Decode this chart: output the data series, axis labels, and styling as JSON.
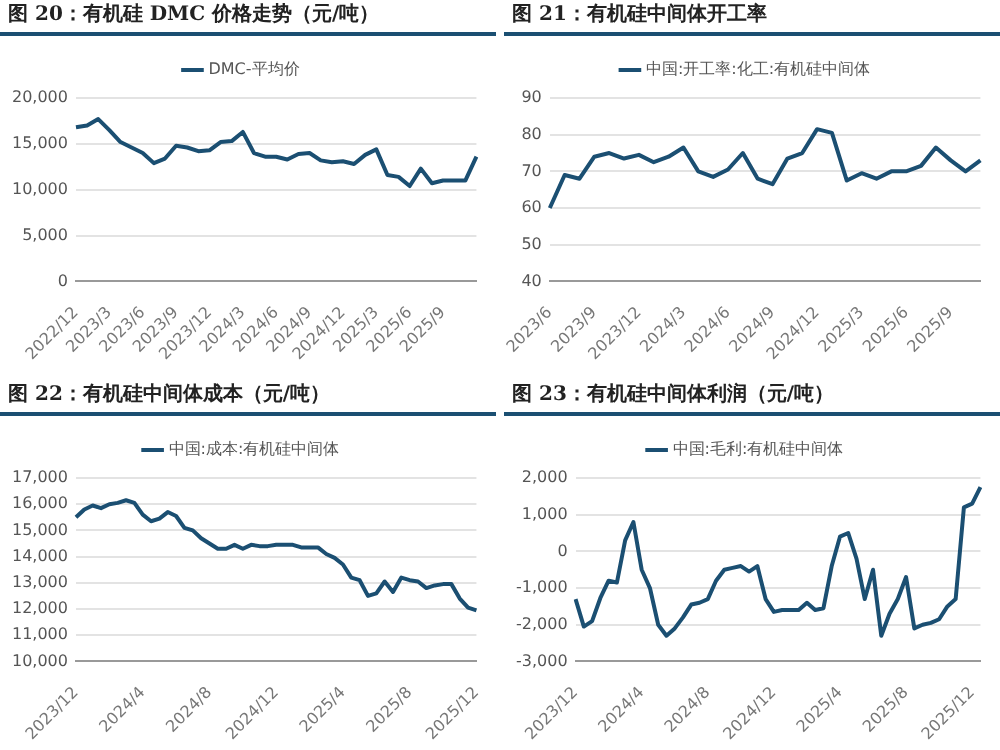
{
  "chart_data": [
    {
      "type": "line",
      "title": "图 20：有机硅 DMC 价格走势（元/吨）",
      "legend": "top",
      "grid": "y",
      "marker": "none",
      "line_style": "solid",
      "categories": [
        "2022/12",
        null,
        null,
        "2023/3",
        null,
        null,
        "2023/6",
        null,
        null,
        "2023/9",
        null,
        null,
        "2023/12",
        null,
        null,
        "2024/3",
        null,
        null,
        "2024/6",
        null,
        null,
        "2024/9",
        null,
        null,
        "2024/12",
        null,
        null,
        "2025/3",
        null,
        null,
        "2025/6",
        null,
        null,
        "2025/9",
        null,
        null,
        null
      ],
      "series": [
        {
          "name": "DMC-平均价",
          "color": "#1b4f72",
          "values": [
            16800,
            17000,
            17700,
            16500,
            15200,
            14600,
            14000,
            12900,
            13400,
            14800,
            14600,
            14200,
            14300,
            15200,
            15300,
            16300,
            14000,
            13600,
            13600,
            13300,
            13900,
            14000,
            13200,
            13000,
            13100,
            12800,
            13800,
            14400,
            11600,
            11400,
            10400,
            12300,
            10700,
            11000,
            11000,
            11000,
            13600
          ]
        }
      ],
      "ylim": [
        0,
        20000
      ],
      "yticks": [
        0,
        {
          "value": 5000,
          "label": "5,000"
        },
        {
          "value": 10000,
          "label": "10,000"
        },
        {
          "value": 15000,
          "label": "15,000"
        },
        {
          "value": 20000,
          "label": "20,000"
        }
      ]
    },
    {
      "type": "line",
      "title": "图 21：有机硅中间体开工率",
      "legend": "top",
      "grid": "y",
      "marker": "none",
      "line_style": "solid",
      "categories": [
        "2023/6",
        null,
        null,
        "2023/9",
        null,
        null,
        "2023/12",
        null,
        null,
        "2024/3",
        null,
        null,
        "2024/6",
        null,
        null,
        "2024/9",
        null,
        null,
        "2024/12",
        null,
        null,
        "2025/3",
        null,
        null,
        "2025/6",
        null,
        null,
        "2025/9",
        null,
        null
      ],
      "series": [
        {
          "name": "中国:开工率:化工:有机硅中间体",
          "color": "#1b4f72",
          "values": [
            60,
            69,
            68,
            74,
            75,
            73.5,
            74.5,
            72.5,
            74,
            76.5,
            70,
            68.5,
            70.5,
            75,
            68,
            66.5,
            73.5,
            75,
            81.5,
            80.5,
            67.5,
            69.5,
            68,
            70,
            70,
            71.5,
            76.5,
            73,
            70,
            73
          ]
        }
      ],
      "ylim": [
        40,
        90
      ],
      "yticks": [
        40,
        50,
        60,
        70,
        80,
        90
      ]
    },
    {
      "type": "line",
      "title": "图 22：有机硅中间体成本（元/吨）",
      "legend": "top",
      "grid": "y",
      "marker": "none",
      "line_style": "solid",
      "categories": [
        "2023/12",
        null,
        null,
        null,
        null,
        null,
        null,
        null,
        "2024/4",
        null,
        null,
        null,
        null,
        null,
        null,
        null,
        "2024/8",
        null,
        null,
        null,
        null,
        null,
        null,
        null,
        "2024/12",
        null,
        null,
        null,
        null,
        null,
        null,
        null,
        "2025/4",
        null,
        null,
        null,
        null,
        null,
        null,
        null,
        "2025/8",
        null,
        null,
        null,
        null,
        null,
        null,
        null,
        "2025/12"
      ],
      "series": [
        {
          "name": "中国:成本:有机硅中间体",
          "color": "#1b4f72",
          "values": [
            15500,
            15800,
            15950,
            15850,
            16000,
            16050,
            16150,
            16050,
            15600,
            15350,
            15450,
            15700,
            15550,
            15100,
            15000,
            14700,
            14500,
            14300,
            14300,
            14450,
            14300,
            14450,
            14400,
            14400,
            14450,
            14450,
            14450,
            14350,
            14350,
            14350,
            14100,
            13950,
            13700,
            13200,
            13100,
            12500,
            12600,
            13050,
            12650,
            13200,
            13100,
            13050,
            12800,
            12900,
            12950,
            12950,
            12400,
            12050,
            11950
          ]
        }
      ],
      "ylim": [
        10000,
        17000
      ],
      "yticks": [
        {
          "value": 10000,
          "label": "10,000"
        },
        {
          "value": 11000,
          "label": "11,000"
        },
        {
          "value": 12000,
          "label": "12,000"
        },
        {
          "value": 13000,
          "label": "13,000"
        },
        {
          "value": 14000,
          "label": "14,000"
        },
        {
          "value": 15000,
          "label": "15,000"
        },
        {
          "value": 16000,
          "label": "16,000"
        },
        {
          "value": 17000,
          "label": "17,000"
        }
      ]
    },
    {
      "type": "line",
      "title": "图 23：有机硅中间体利润（元/吨）",
      "legend": "top",
      "grid": "y",
      "marker": "none",
      "line_style": "solid",
      "categories": [
        "2023/12",
        null,
        null,
        null,
        null,
        null,
        null,
        null,
        "2024/4",
        null,
        null,
        null,
        null,
        null,
        null,
        null,
        "2024/8",
        null,
        null,
        null,
        null,
        null,
        null,
        null,
        "2024/12",
        null,
        null,
        null,
        null,
        null,
        null,
        null,
        "2025/4",
        null,
        null,
        null,
        null,
        null,
        null,
        null,
        "2025/8",
        null,
        null,
        null,
        null,
        null,
        null,
        null,
        "2025/12",
        null
      ],
      "series": [
        {
          "name": "中国:毛利:有机硅中间体",
          "color": "#1b4f72",
          "values": [
            -1300,
            -2050,
            -1900,
            -1270,
            -800,
            -850,
            300,
            800,
            -500,
            -1000,
            -2000,
            -2300,
            -2100,
            -1800,
            -1450,
            -1400,
            -1300,
            -800,
            -500,
            -450,
            -400,
            -550,
            -400,
            -1300,
            -1650,
            -1600,
            -1600,
            -1600,
            -1400,
            -1600,
            -1550,
            -400,
            400,
            500,
            -200,
            -1300,
            -500,
            -2300,
            -1700,
            -1300,
            -700,
            -2100,
            -2000,
            -1950,
            -1850,
            -1500,
            -1300,
            1200,
            1300,
            1750
          ]
        }
      ],
      "ylim": [
        -3000,
        2000
      ],
      "yticks": [
        {
          "value": -3000,
          "label": "-3,000"
        },
        {
          "value": -2000,
          "label": "-2,000"
        },
        {
          "value": -1000,
          "label": "-1,000"
        },
        0,
        {
          "value": 1000,
          "label": "1,000"
        },
        {
          "value": 2000,
          "label": "2,000"
        }
      ]
    }
  ]
}
